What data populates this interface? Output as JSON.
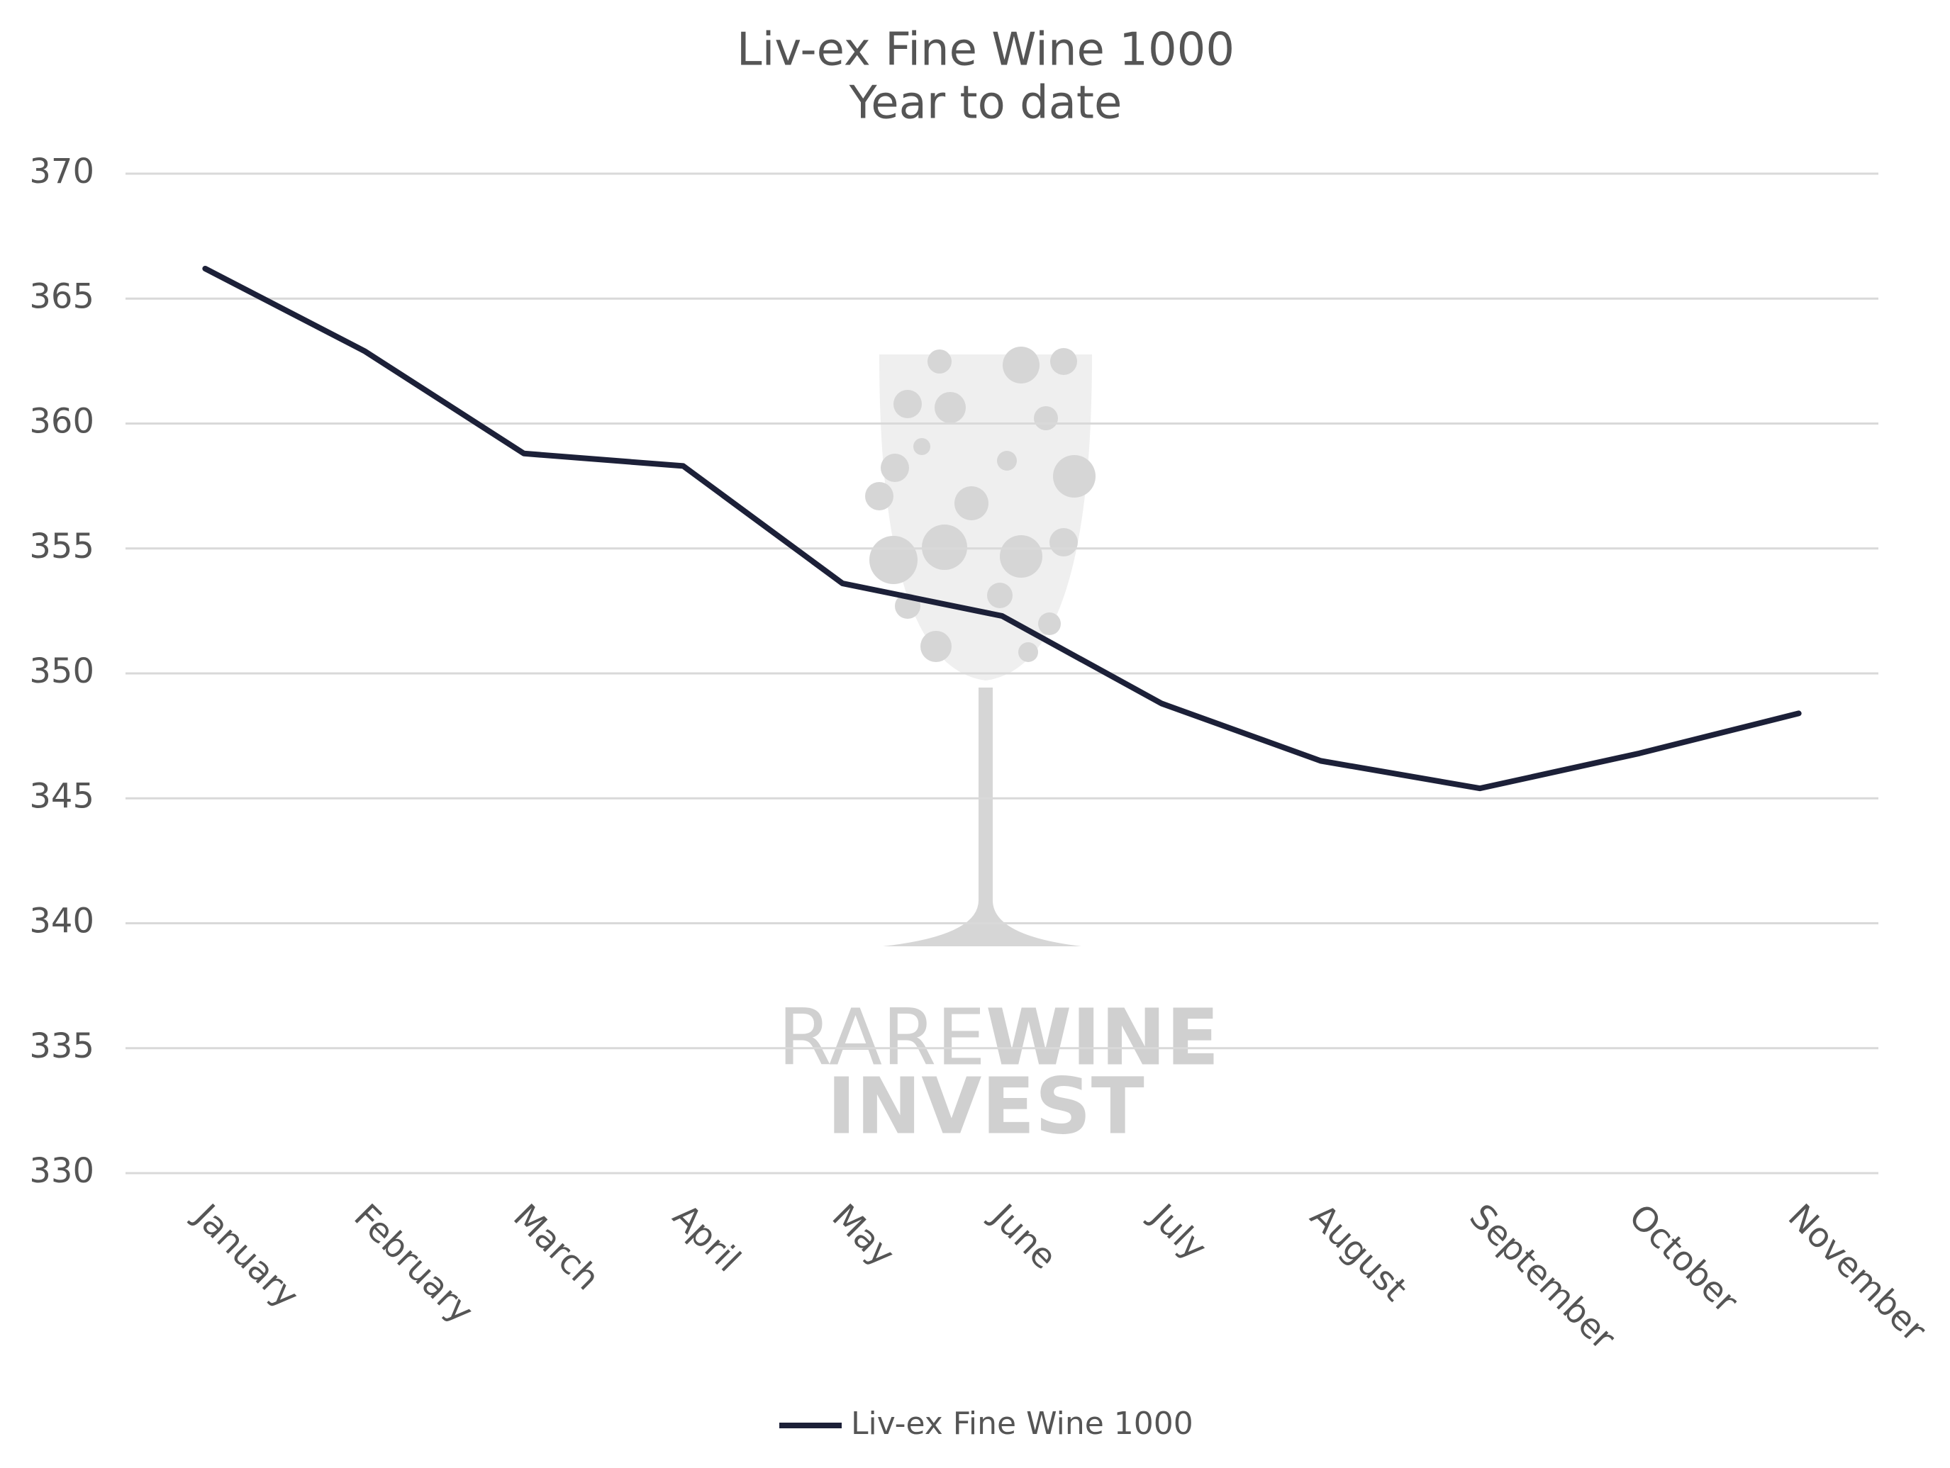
{
  "chart_data": {
    "type": "line",
    "title": "Liv-ex Fine Wine 1000",
    "subtitle": "Year to date",
    "categories": [
      "January",
      "February",
      "March",
      "April",
      "May",
      "June",
      "July",
      "August",
      "September",
      "October",
      "November"
    ],
    "series": [
      {
        "name": "Liv-ex Fine Wine 1000",
        "color": "#1c2038",
        "values": [
          366.2,
          362.9,
          358.8,
          358.3,
          353.6,
          352.3,
          348.8,
          346.5,
          345.4,
          346.8,
          348.4
        ]
      }
    ],
    "ylim": [
      330,
      370
    ],
    "yticks": [
      330,
      335,
      340,
      345,
      350,
      355,
      360,
      365,
      370
    ],
    "grid": true,
    "legend": "bottom",
    "watermark": {
      "light": "RARE",
      "bold": "WINE",
      "second": "INVEST"
    }
  }
}
